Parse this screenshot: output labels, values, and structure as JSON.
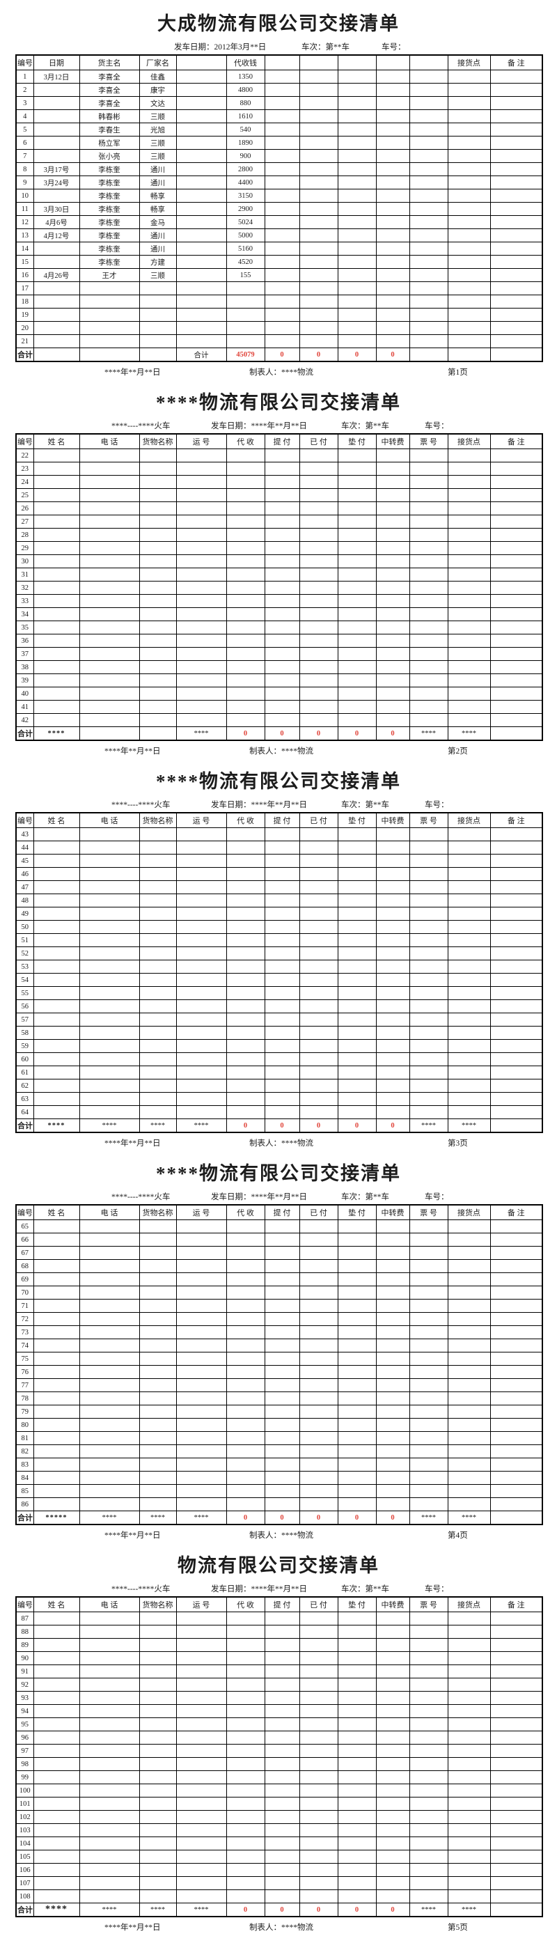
{
  "colors": {
    "text": "#1c1c1c",
    "total_red": "#e0443a",
    "border": "#000000"
  },
  "pages": [
    {
      "title": "大成物流有限公司交接清单",
      "subheader": [
        "发车日期：2012年3月**日",
        "车次：第**车",
        "车号："
      ],
      "columns": [
        "编号",
        "日期",
        "货主名",
        "厂家名",
        "",
        "代收钱",
        "",
        "",
        "",
        "",
        "",
        "接货点",
        "备  注"
      ],
      "row_start": 1,
      "row_end": 21,
      "filled": {
        "1": [
          "3月12日",
          "李喜全",
          "佳鑫",
          "1350"
        ],
        "2": [
          "",
          "李喜全",
          "康宇",
          "4800"
        ],
        "3": [
          "",
          "李喜全",
          "文达",
          "880"
        ],
        "4": [
          "",
          "韩春彬",
          "三顺",
          "1610"
        ],
        "5": [
          "",
          "李春生",
          "光旭",
          "540"
        ],
        "6": [
          "",
          "杨立军",
          "三顺",
          "1890"
        ],
        "7": [
          "",
          "张小亮",
          "三顺",
          "900"
        ],
        "8": [
          "3月17号",
          "李栋奎",
          "通川",
          "2800"
        ],
        "9": [
          "3月24号",
          "李栋奎",
          "通川",
          "4400"
        ],
        "10": [
          "",
          "李栋奎",
          "畅享",
          "3150"
        ],
        "11": [
          "3月30日",
          "李栋奎",
          "畅享",
          "2900"
        ],
        "12": [
          "4月6号",
          "李栋奎",
          "金马",
          "5024"
        ],
        "13": [
          "4月12号",
          "李栋奎",
          "通川",
          "5000"
        ],
        "14": [
          "",
          "李栋奎",
          "通川",
          "5160"
        ],
        "15": [
          "",
          "李栋奎",
          "方建",
          "4520"
        ],
        "16": [
          "4月26号",
          "王才",
          "三顺",
          "155"
        ]
      },
      "total": [
        "合计",
        "",
        "",
        "",
        "合计",
        "45079",
        "0",
        "0",
        "0",
        "0",
        "",
        "",
        ""
      ],
      "footer": [
        "****年**月**日",
        "制表人：****物流",
        "第1页"
      ],
      "big_name": false
    },
    {
      "title": "****物流有限公司交接清单",
      "subheader": [
        "****----****火车",
        "发车日期：****年**月**日",
        "车次：第**车",
        "车号："
      ],
      "columns": [
        "编号",
        "姓  名",
        "电  话",
        "货物名称",
        "运  号",
        "代  收",
        "提  付",
        "已  付",
        "垫  付",
        "中转费",
        "票  号",
        "接货点",
        "备  注"
      ],
      "row_start": 22,
      "row_end": 42,
      "filled": {},
      "total": [
        "合计",
        "****",
        "",
        "",
        "****",
        "0",
        "0",
        "0",
        "0",
        "0",
        "****",
        "****",
        ""
      ],
      "footer": [
        "****年**月**日",
        "制表人：****物流",
        "第2页"
      ],
      "big_name": false
    },
    {
      "title": "****物流有限公司交接清单",
      "subheader": [
        "****----****火车",
        "发车日期：****年**月**日",
        "车次：第**车",
        "车号："
      ],
      "columns": [
        "编号",
        "姓  名",
        "电  话",
        "货物名称",
        "运  号",
        "代  收",
        "提  付",
        "已  付",
        "垫  付",
        "中转费",
        "票  号",
        "接货点",
        "备  注"
      ],
      "row_start": 43,
      "row_end": 64,
      "filled": {},
      "total": [
        "合计",
        "****",
        "****",
        "****",
        "****",
        "0",
        "0",
        "0",
        "0",
        "0",
        "****",
        "****",
        ""
      ],
      "footer": [
        "****年**月**日",
        "制表人：****物流",
        "第3页"
      ],
      "big_name": false
    },
    {
      "title": "****物流有限公司交接清单",
      "subheader": [
        "****----****火车",
        "发车日期：****年**月**日",
        "车次：第**车",
        "车号："
      ],
      "columns": [
        "编号",
        "姓  名",
        "电  话",
        "货物名称",
        "运  号",
        "代  收",
        "提  付",
        "已  付",
        "垫  付",
        "中转费",
        "票  号",
        "接货点",
        "备  注"
      ],
      "row_start": 65,
      "row_end": 86,
      "filled": {},
      "total": [
        "合计",
        "*****",
        "****",
        "****",
        "****",
        "0",
        "0",
        "0",
        "0",
        "0",
        "****",
        "****",
        ""
      ],
      "footer": [
        "****年**月**日",
        "制表人：****物流",
        "第4页"
      ],
      "big_name": false
    },
    {
      "title": "物流有限公司交接清单",
      "subheader": [
        "****----****火车",
        "发车日期：****年**月**日",
        "车次：第**车",
        "车号："
      ],
      "columns": [
        "编号",
        "姓  名",
        "电  话",
        "货物名称",
        "运  号",
        "代  收",
        "提  付",
        "已  付",
        "垫  付",
        "中转费",
        "票  号",
        "接货点",
        "备  注"
      ],
      "row_start": 87,
      "row_end": 108,
      "filled": {},
      "total": [
        "合计",
        "****",
        "****",
        "****",
        "****",
        "0",
        "0",
        "0",
        "0",
        "0",
        "****",
        "****",
        ""
      ],
      "footer": [
        "****年**月**日",
        "制表人：****物流",
        "第5页"
      ],
      "big_name": true
    }
  ]
}
